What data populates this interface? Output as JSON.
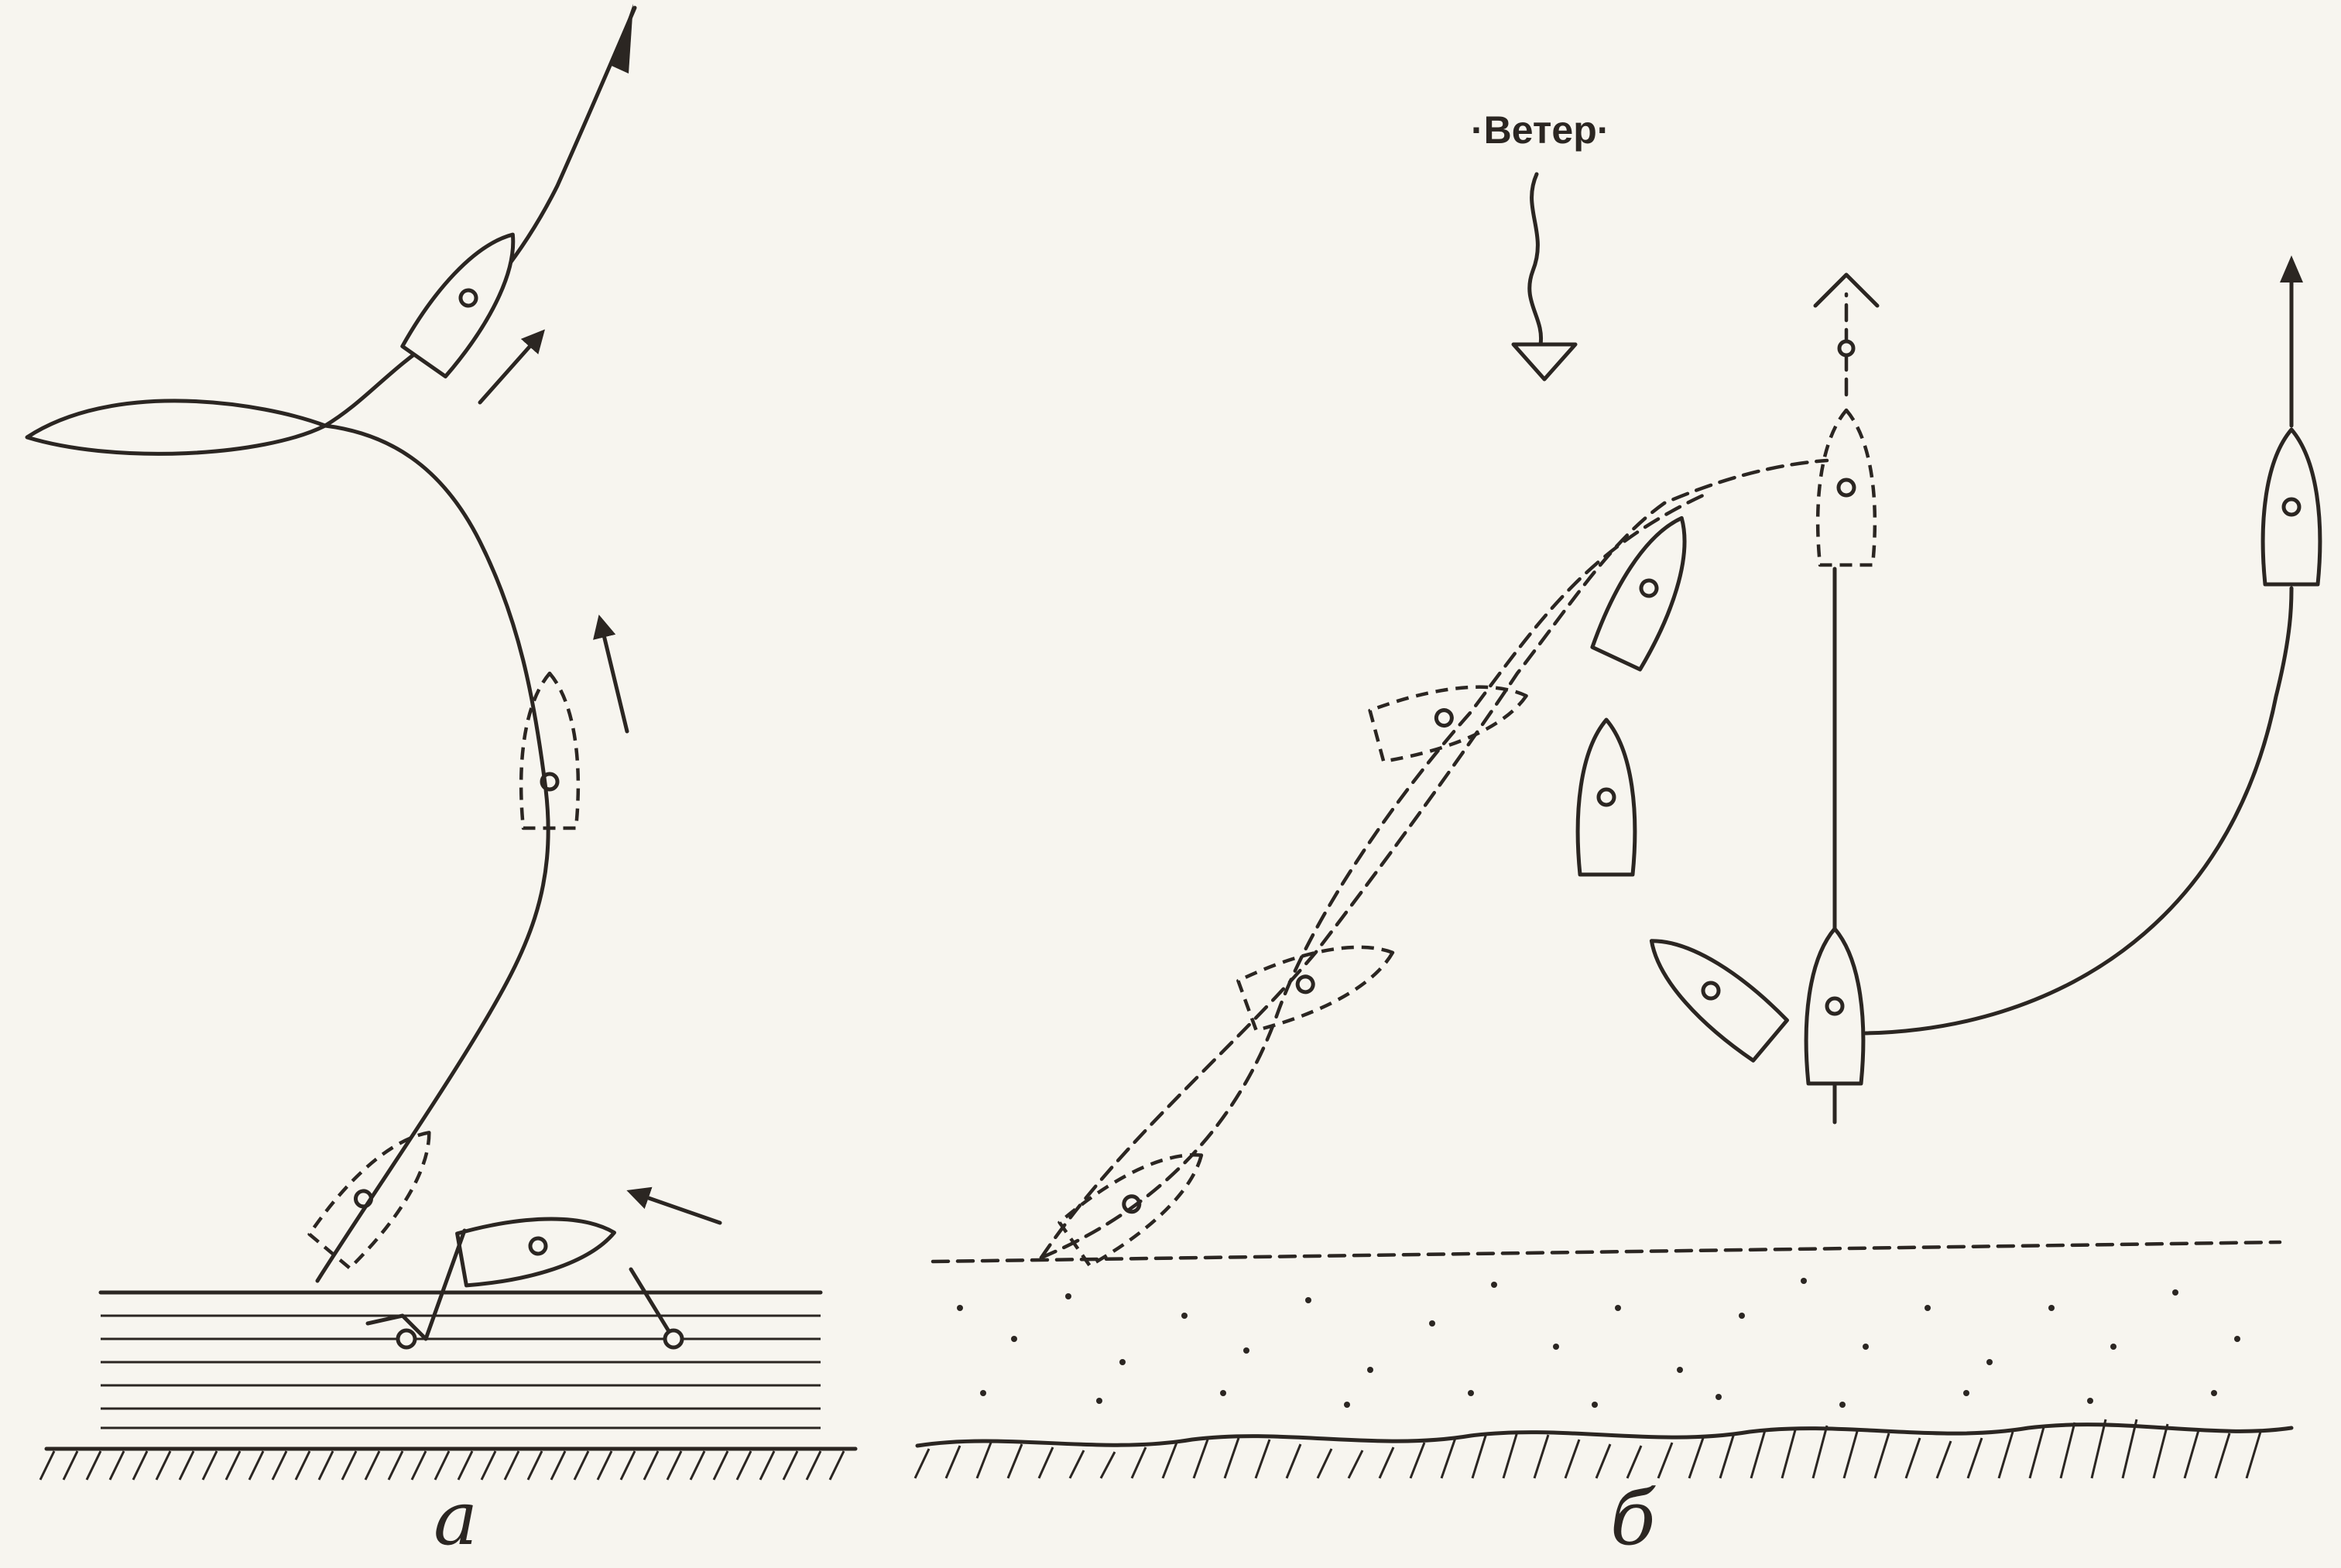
{
  "figure": {
    "wind_label": "·Ветер·",
    "panel_a_label": "а",
    "panel_b_label": "б"
  },
  "colors": {
    "ink": "#2b2622",
    "paper": "#f7f5ef"
  }
}
